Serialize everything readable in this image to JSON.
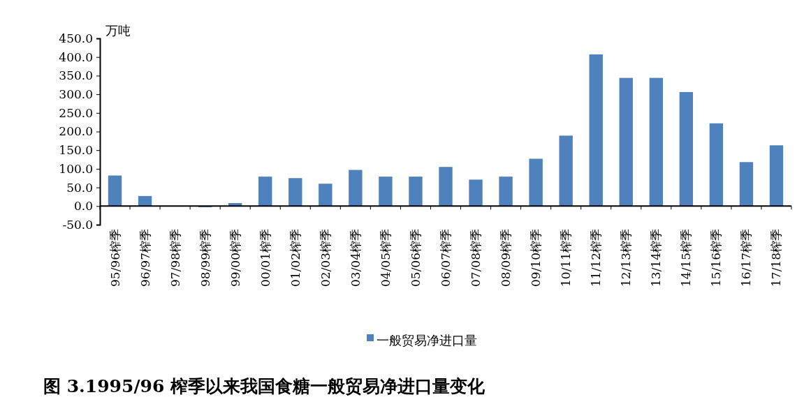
{
  "chart_data": {
    "type": "bar",
    "ylabel": "万吨",
    "categories": [
      "95/96榨季",
      "96/97榨季",
      "97/98榨季",
      "98/99榨季",
      "99/00榨季",
      "00/01榨季",
      "01/02榨季",
      "02/03榨季",
      "03/04榨季",
      "04/05榨季",
      "05/06榨季",
      "06/07榨季",
      "07/08榨季",
      "08/09榨季",
      "09/10榨季",
      "10/11榨季",
      "11/12榨季",
      "12/13榨季",
      "13/14榨季",
      "14/15榨季",
      "15/16榨季",
      "16/17榨季",
      "17/18榨季"
    ],
    "series": [
      {
        "name": "一般贸易净进口量",
        "color": "#4f81bd",
        "values": [
          82,
          27,
          0,
          -3,
          8,
          79,
          75,
          60,
          97,
          79,
          79,
          105,
          71,
          79,
          127,
          189,
          407,
          344,
          344,
          306,
          222,
          118,
          163
        ]
      }
    ],
    "ylim": [
      -50,
      450
    ],
    "yticks": [
      {
        "value": -50,
        "label": "-50.0"
      },
      {
        "value": 0,
        "label": "0.0"
      },
      {
        "value": 50,
        "label": "50.0"
      },
      {
        "value": 100,
        "label": "100.0"
      },
      {
        "value": 150,
        "label": "150.0"
      },
      {
        "value": 200,
        "label": "200.0"
      },
      {
        "value": 250,
        "label": "250.0"
      },
      {
        "value": 300,
        "label": "300.0"
      },
      {
        "value": 350,
        "label": "350.0"
      },
      {
        "value": 400,
        "label": "400.0"
      },
      {
        "value": 450,
        "label": "450.0"
      }
    ],
    "grid": false,
    "legend": "bottom",
    "annotations": [
      "图 3.1995/96 榨季以来我国食糖一般贸易净进口量变化"
    ]
  }
}
